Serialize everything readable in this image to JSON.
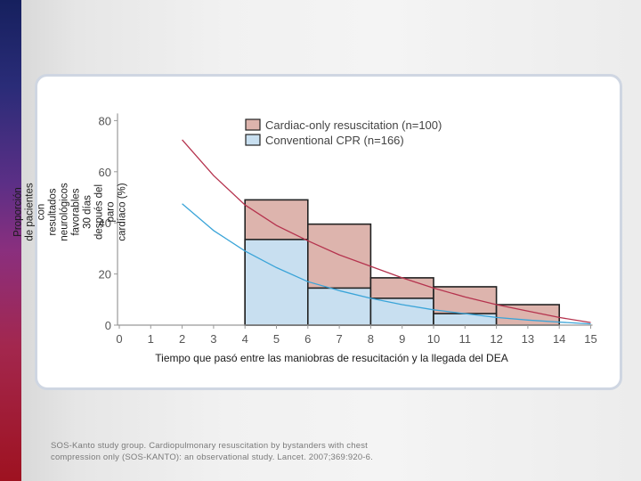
{
  "chart_data": {
    "type": "bar",
    "y_axis_title": "Proporción de pacientes con resultados neurológicos favorables 30 días después del paro cardíaco (%)",
    "x_axis_title": "Tiempo que pasó entre las maniobras de resucitación y la llegada del DEA",
    "xlim": [
      0,
      15
    ],
    "ylim": [
      0,
      80
    ],
    "x_ticks": [
      0,
      1,
      2,
      3,
      4,
      5,
      6,
      7,
      8,
      9,
      10,
      11,
      12,
      13,
      14,
      15
    ],
    "y_ticks": [
      0,
      20,
      40,
      60,
      80
    ],
    "bins": [
      {
        "x_start": 4,
        "x_end": 6,
        "cardiac_only": 49,
        "conventional_cpr": 33.5
      },
      {
        "x_start": 6,
        "x_end": 8,
        "cardiac_only": 39.5,
        "conventional_cpr": 14.5
      },
      {
        "x_start": 8,
        "x_end": 10,
        "cardiac_only": 18.5,
        "conventional_cpr": 10.5
      },
      {
        "x_start": 10,
        "x_end": 12,
        "cardiac_only": 15,
        "conventional_cpr": 4.5
      },
      {
        "x_start": 12,
        "x_end": 14,
        "cardiac_only": 8,
        "conventional_cpr": 0
      }
    ],
    "series": [
      {
        "name": "Cardiac-only resuscitation (n=100)",
        "fill_color": "#ddb4ad",
        "curve_color": "#b5334e",
        "curve_x": [
          2,
          3,
          4,
          5,
          6,
          7,
          8,
          9,
          10,
          11,
          12,
          13,
          14,
          15
        ],
        "curve_y": [
          72.5,
          58.5,
          47,
          39,
          33,
          27.5,
          23,
          18.5,
          14.5,
          11,
          8,
          5.5,
          3,
          1
        ]
      },
      {
        "name": "Conventional CPR (n=166)",
        "fill_color": "#c8dff0",
        "curve_color": "#3aa4d8",
        "curve_x": [
          2,
          3,
          4,
          5,
          6,
          7,
          8,
          9,
          10,
          11,
          12,
          13,
          14,
          15
        ],
        "curve_y": [
          47.5,
          37,
          29,
          22.5,
          17,
          13.5,
          10.5,
          8,
          6,
          4.5,
          3,
          2,
          1.2,
          0.5
        ]
      }
    ],
    "legend_position": "top"
  },
  "citation_lines": [
    "SOS-Kanto study group. Cardiopulmonary resuscitation by bystanders with chest",
    "compression only (SOS-KANTO): an observational study. Lancet. 2007;369:920-6."
  ]
}
